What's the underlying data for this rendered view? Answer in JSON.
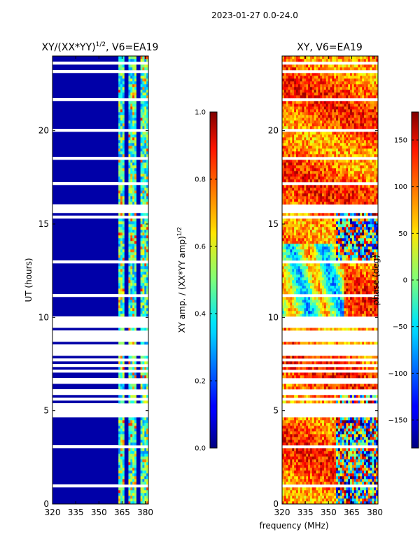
{
  "suptitle": "2023-01-27 0.0-24.0",
  "shared_xlabel": "frequency (MHz)",
  "chart_data": [
    {
      "type": "heatmap",
      "title_main": "XY/(XX*YY)",
      "title_sup": "1/2",
      "title_tail": ", V6=EA19",
      "xlabel": "",
      "ylabel": "UT (hours)",
      "xlim": [
        320,
        382
      ],
      "ylim": [
        0,
        24
      ],
      "xticks": [
        320,
        335,
        350,
        365,
        380
      ],
      "yticks": [
        0,
        5,
        10,
        15,
        20
      ],
      "colorbar": {
        "label_main": "XY amp. / (XX*YY amp)",
        "label_sup": "1/2",
        "range": [
          0.0,
          1.0
        ],
        "ticks": [
          "0.0",
          "0.2",
          "0.4",
          "0.6",
          "0.8",
          "1.0"
        ],
        "tick_values": [
          0.0,
          0.2,
          0.4,
          0.6,
          0.8,
          1.0
        ]
      }
    },
    {
      "type": "heatmap",
      "title_main": "XY, V6=EA19",
      "xlabel": "frequency (MHz)",
      "ylabel": "",
      "xlim": [
        320,
        382
      ],
      "ylim": [
        0,
        24
      ],
      "xticks": [
        320,
        335,
        350,
        365,
        380
      ],
      "yticks": [
        0,
        5,
        10,
        15,
        20
      ],
      "colorbar": {
        "label_main": "phase (deg)",
        "range": [
          -180,
          180
        ],
        "ticks": [
          "−150",
          "−100",
          "−50",
          "0",
          "50",
          "100",
          "150"
        ],
        "tick_values": [
          -150,
          -100,
          -50,
          0,
          50,
          100,
          150
        ]
      }
    }
  ]
}
